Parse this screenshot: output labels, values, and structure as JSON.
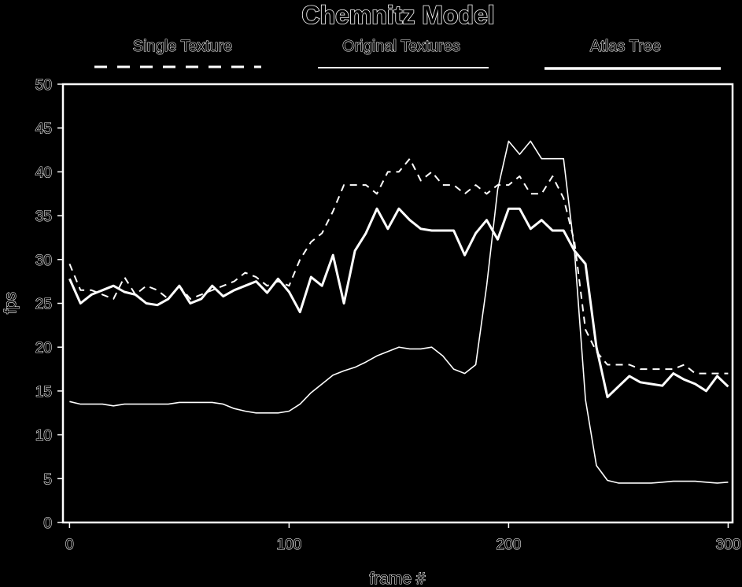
{
  "chart_data": {
    "type": "line",
    "title": "Chemnitz Model",
    "xlabel": "frame #",
    "ylabel": "fps",
    "xlim": [
      -3,
      302
    ],
    "ylim": [
      0,
      50
    ],
    "xticks": [
      0,
      100,
      200,
      300
    ],
    "yticks": [
      0,
      5,
      10,
      15,
      20,
      25,
      30,
      35,
      40,
      45,
      50
    ],
    "legend_position": "top",
    "series": [
      {
        "name": "Single Texture",
        "style": "dashed",
        "x": [
          0,
          5,
          10,
          15,
          20,
          25,
          30,
          35,
          40,
          45,
          50,
          55,
          60,
          65,
          70,
          75,
          80,
          85,
          90,
          95,
          100,
          105,
          110,
          115,
          120,
          125,
          130,
          135,
          140,
          145,
          150,
          155,
          160,
          165,
          170,
          175,
          180,
          185,
          190,
          195,
          200,
          205,
          210,
          215,
          220,
          225,
          230,
          235,
          240,
          245,
          250,
          255,
          260,
          265,
          270,
          275,
          280,
          285,
          290,
          295,
          300
        ],
        "values": [
          29.5,
          26.5,
          26.5,
          26,
          25.5,
          28,
          26,
          27,
          26.5,
          25.5,
          27,
          25.5,
          26,
          26.5,
          27,
          27.5,
          28.5,
          28,
          27,
          27.5,
          27,
          30,
          32,
          33,
          35.5,
          38.5,
          38.5,
          38.5,
          37.5,
          40,
          40,
          41.5,
          39,
          40,
          38.5,
          38.5,
          37.5,
          38.5,
          37.5,
          38.5,
          38.5,
          39.5,
          37.5,
          37.5,
          39.5,
          37,
          32,
          22,
          19.5,
          18,
          18,
          18,
          17.5,
          17.5,
          17.5,
          17.5,
          18,
          17,
          17,
          17,
          17
        ]
      },
      {
        "name": "Original Textures",
        "style": "thin",
        "x": [
          0,
          5,
          10,
          15,
          20,
          25,
          30,
          35,
          40,
          45,
          50,
          55,
          60,
          65,
          70,
          75,
          80,
          85,
          90,
          95,
          100,
          105,
          110,
          115,
          120,
          125,
          130,
          135,
          140,
          145,
          150,
          155,
          160,
          165,
          170,
          175,
          180,
          185,
          190,
          195,
          200,
          205,
          210,
          215,
          220,
          225,
          230,
          235,
          240,
          245,
          250,
          255,
          260,
          265,
          270,
          275,
          280,
          285,
          290,
          295,
          300
        ],
        "values": [
          13.8,
          13.5,
          13.5,
          13.5,
          13.3,
          13.5,
          13.5,
          13.5,
          13.5,
          13.5,
          13.7,
          13.7,
          13.7,
          13.7,
          13.5,
          13,
          12.7,
          12.5,
          12.5,
          12.5,
          12.7,
          13.5,
          14.8,
          15.8,
          16.8,
          17.3,
          17.7,
          18.3,
          19,
          19.5,
          20,
          19.8,
          19.8,
          20,
          19,
          17.5,
          17,
          18,
          27,
          38,
          43.5,
          42,
          43.5,
          41.5,
          41.5,
          41.5,
          31,
          14,
          6.5,
          4.8,
          4.5,
          4.5,
          4.5,
          4.5,
          4.6,
          4.7,
          4.7,
          4.7,
          4.6,
          4.5,
          4.6
        ]
      },
      {
        "name": "Atlas Tree",
        "style": "thick",
        "x": [
          0,
          5,
          10,
          15,
          20,
          25,
          30,
          35,
          40,
          45,
          50,
          55,
          60,
          65,
          70,
          75,
          80,
          85,
          90,
          95,
          100,
          105,
          110,
          115,
          120,
          125,
          130,
          135,
          140,
          145,
          150,
          155,
          160,
          165,
          170,
          175,
          180,
          185,
          190,
          195,
          200,
          205,
          210,
          215,
          220,
          225,
          230,
          235,
          240,
          245,
          250,
          255,
          260,
          265,
          270,
          275,
          280,
          285,
          290,
          295,
          300
        ],
        "values": [
          27.8,
          25,
          26,
          26.5,
          27,
          26.3,
          26,
          25,
          24.8,
          25.5,
          27,
          25,
          25.5,
          27,
          25.8,
          26.5,
          27,
          27.5,
          26.2,
          27.8,
          26.3,
          24,
          28,
          27,
          30.5,
          25,
          31,
          33,
          35.8,
          33.5,
          35.8,
          34.5,
          33.5,
          33.3,
          33.3,
          33.3,
          30.5,
          33,
          34.5,
          32.3,
          35.8,
          35.8,
          33.5,
          34.5,
          33.3,
          33.3,
          31,
          29.5,
          20,
          14.3,
          15.5,
          16.7,
          16,
          15.8,
          15.6,
          17,
          16.3,
          15.8,
          15,
          16.7,
          15.5
        ]
      }
    ]
  }
}
